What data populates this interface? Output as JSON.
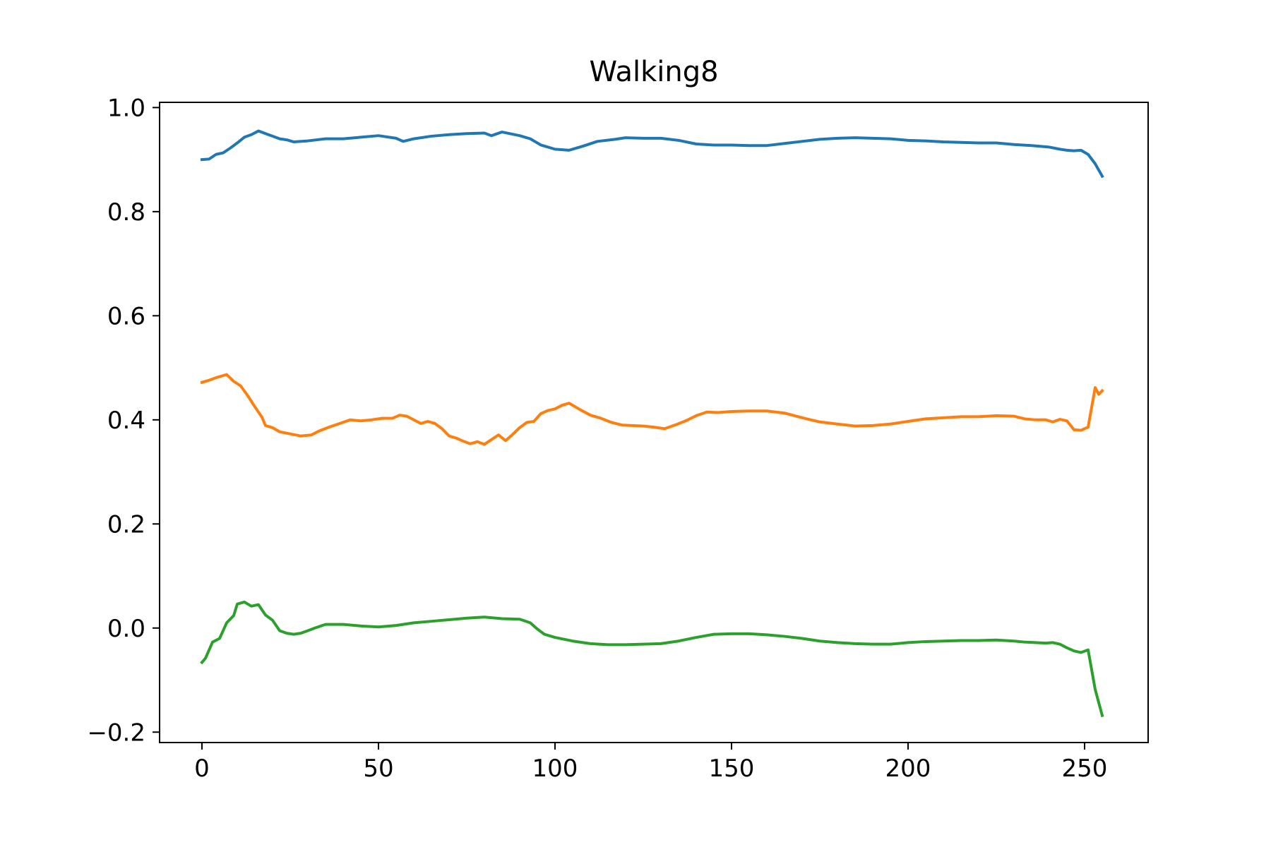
{
  "chart_data": {
    "type": "line",
    "title": "Walking8",
    "xlabel": "",
    "ylabel": "",
    "xlim": [
      -12,
      268
    ],
    "ylim": [
      -0.22,
      1.01
    ],
    "xticks": [
      0,
      50,
      100,
      150,
      200,
      250
    ],
    "xtick_labels": [
      "0",
      "50",
      "100",
      "150",
      "200",
      "250"
    ],
    "yticks": [
      -0.2,
      0.0,
      0.2,
      0.4,
      0.6,
      0.8,
      1.0
    ],
    "ytick_labels": [
      "−0.2",
      "0.0",
      "0.2",
      "0.4",
      "0.6",
      "0.8",
      "1.0"
    ],
    "grid": false,
    "legend": "none",
    "series": [
      {
        "color": "#1f77b4",
        "points": [
          [
            0,
            0.9
          ],
          [
            2,
            0.901
          ],
          [
            4,
            0.91
          ],
          [
            6,
            0.913
          ],
          [
            8,
            0.922
          ],
          [
            10,
            0.932
          ],
          [
            12,
            0.943
          ],
          [
            14,
            0.948
          ],
          [
            16,
            0.955
          ],
          [
            18,
            0.95
          ],
          [
            20,
            0.945
          ],
          [
            22,
            0.94
          ],
          [
            24,
            0.938
          ],
          [
            26,
            0.934
          ],
          [
            30,
            0.936
          ],
          [
            35,
            0.94
          ],
          [
            40,
            0.94
          ],
          [
            45,
            0.943
          ],
          [
            50,
            0.946
          ],
          [
            55,
            0.941
          ],
          [
            57,
            0.935
          ],
          [
            60,
            0.94
          ],
          [
            65,
            0.945
          ],
          [
            70,
            0.948
          ],
          [
            75,
            0.95
          ],
          [
            80,
            0.951
          ],
          [
            82,
            0.946
          ],
          [
            85,
            0.953
          ],
          [
            90,
            0.946
          ],
          [
            93,
            0.94
          ],
          [
            96,
            0.928
          ],
          [
            100,
            0.92
          ],
          [
            104,
            0.918
          ],
          [
            108,
            0.926
          ],
          [
            112,
            0.935
          ],
          [
            117,
            0.939
          ],
          [
            120,
            0.942
          ],
          [
            125,
            0.941
          ],
          [
            130,
            0.941
          ],
          [
            135,
            0.937
          ],
          [
            140,
            0.93
          ],
          [
            145,
            0.928
          ],
          [
            150,
            0.928
          ],
          [
            155,
            0.927
          ],
          [
            160,
            0.927
          ],
          [
            165,
            0.931
          ],
          [
            170,
            0.935
          ],
          [
            175,
            0.939
          ],
          [
            180,
            0.941
          ],
          [
            185,
            0.942
          ],
          [
            190,
            0.941
          ],
          [
            195,
            0.94
          ],
          [
            200,
            0.937
          ],
          [
            205,
            0.936
          ],
          [
            210,
            0.934
          ],
          [
            215,
            0.933
          ],
          [
            220,
            0.932
          ],
          [
            225,
            0.932
          ],
          [
            230,
            0.929
          ],
          [
            235,
            0.927
          ],
          [
            240,
            0.924
          ],
          [
            243,
            0.92
          ],
          [
            245,
            0.918
          ],
          [
            247,
            0.917
          ],
          [
            249,
            0.918
          ],
          [
            251,
            0.91
          ],
          [
            253,
            0.892
          ],
          [
            255,
            0.868
          ]
        ]
      },
      {
        "color": "#ff7f0e",
        "points": [
          [
            0,
            0.472
          ],
          [
            2,
            0.476
          ],
          [
            4,
            0.481
          ],
          [
            6,
            0.485
          ],
          [
            7,
            0.487
          ],
          [
            9,
            0.474
          ],
          [
            11,
            0.465
          ],
          [
            13,
            0.446
          ],
          [
            15,
            0.425
          ],
          [
            17,
            0.405
          ],
          [
            18,
            0.389
          ],
          [
            20,
            0.385
          ],
          [
            22,
            0.377
          ],
          [
            25,
            0.373
          ],
          [
            28,
            0.369
          ],
          [
            31,
            0.371
          ],
          [
            33,
            0.378
          ],
          [
            36,
            0.386
          ],
          [
            39,
            0.393
          ],
          [
            42,
            0.4
          ],
          [
            45,
            0.398
          ],
          [
            48,
            0.4
          ],
          [
            51,
            0.403
          ],
          [
            54,
            0.403
          ],
          [
            56,
            0.409
          ],
          [
            58,
            0.407
          ],
          [
            60,
            0.4
          ],
          [
            62,
            0.393
          ],
          [
            64,
            0.397
          ],
          [
            66,
            0.393
          ],
          [
            68,
            0.383
          ],
          [
            70,
            0.369
          ],
          [
            72,
            0.365
          ],
          [
            74,
            0.359
          ],
          [
            76,
            0.354
          ],
          [
            78,
            0.358
          ],
          [
            80,
            0.353
          ],
          [
            82,
            0.362
          ],
          [
            84,
            0.371
          ],
          [
            86,
            0.36
          ],
          [
            88,
            0.372
          ],
          [
            90,
            0.385
          ],
          [
            92,
            0.395
          ],
          [
            94,
            0.397
          ],
          [
            96,
            0.412
          ],
          [
            98,
            0.418
          ],
          [
            100,
            0.421
          ],
          [
            102,
            0.428
          ],
          [
            104,
            0.432
          ],
          [
            107,
            0.42
          ],
          [
            110,
            0.409
          ],
          [
            113,
            0.403
          ],
          [
            116,
            0.395
          ],
          [
            119,
            0.39
          ],
          [
            122,
            0.389
          ],
          [
            125,
            0.388
          ],
          [
            128,
            0.386
          ],
          [
            131,
            0.383
          ],
          [
            134,
            0.39
          ],
          [
            137,
            0.398
          ],
          [
            140,
            0.408
          ],
          [
            143,
            0.415
          ],
          [
            146,
            0.414
          ],
          [
            150,
            0.416
          ],
          [
            155,
            0.417
          ],
          [
            160,
            0.417
          ],
          [
            165,
            0.413
          ],
          [
            170,
            0.404
          ],
          [
            175,
            0.396
          ],
          [
            180,
            0.392
          ],
          [
            185,
            0.388
          ],
          [
            190,
            0.389
          ],
          [
            195,
            0.392
          ],
          [
            200,
            0.397
          ],
          [
            205,
            0.402
          ],
          [
            210,
            0.404
          ],
          [
            215,
            0.406
          ],
          [
            220,
            0.406
          ],
          [
            225,
            0.408
          ],
          [
            230,
            0.407
          ],
          [
            233,
            0.402
          ],
          [
            236,
            0.4
          ],
          [
            239,
            0.4
          ],
          [
            241,
            0.396
          ],
          [
            243,
            0.401
          ],
          [
            245,
            0.398
          ],
          [
            247,
            0.381
          ],
          [
            249,
            0.38
          ],
          [
            251,
            0.386
          ],
          [
            253,
            0.462
          ],
          [
            254,
            0.449
          ],
          [
            255,
            0.456
          ]
        ]
      },
      {
        "color": "#2ca02c",
        "points": [
          [
            0,
            -0.066
          ],
          [
            1,
            -0.058
          ],
          [
            3,
            -0.027
          ],
          [
            5,
            -0.02
          ],
          [
            7,
            0.01
          ],
          [
            9,
            0.024
          ],
          [
            10,
            0.046
          ],
          [
            12,
            0.05
          ],
          [
            14,
            0.042
          ],
          [
            16,
            0.045
          ],
          [
            18,
            0.025
          ],
          [
            20,
            0.015
          ],
          [
            22,
            -0.005
          ],
          [
            24,
            -0.01
          ],
          [
            26,
            -0.012
          ],
          [
            28,
            -0.01
          ],
          [
            30,
            -0.005
          ],
          [
            32,
            0.0
          ],
          [
            35,
            0.007
          ],
          [
            40,
            0.007
          ],
          [
            45,
            0.004
          ],
          [
            50,
            0.002
          ],
          [
            55,
            0.005
          ],
          [
            60,
            0.01
          ],
          [
            65,
            0.013
          ],
          [
            70,
            0.016
          ],
          [
            75,
            0.019
          ],
          [
            80,
            0.021
          ],
          [
            85,
            0.018
          ],
          [
            90,
            0.017
          ],
          [
            93,
            0.01
          ],
          [
            95,
            -0.002
          ],
          [
            97,
            -0.012
          ],
          [
            100,
            -0.018
          ],
          [
            105,
            -0.025
          ],
          [
            110,
            -0.03
          ],
          [
            115,
            -0.032
          ],
          [
            120,
            -0.032
          ],
          [
            125,
            -0.031
          ],
          [
            130,
            -0.03
          ],
          [
            135,
            -0.025
          ],
          [
            140,
            -0.018
          ],
          [
            145,
            -0.012
          ],
          [
            150,
            -0.011
          ],
          [
            155,
            -0.011
          ],
          [
            160,
            -0.013
          ],
          [
            165,
            -0.016
          ],
          [
            170,
            -0.02
          ],
          [
            175,
            -0.025
          ],
          [
            180,
            -0.028
          ],
          [
            185,
            -0.03
          ],
          [
            190,
            -0.031
          ],
          [
            195,
            -0.031
          ],
          [
            200,
            -0.028
          ],
          [
            205,
            -0.026
          ],
          [
            210,
            -0.025
          ],
          [
            215,
            -0.024
          ],
          [
            220,
            -0.024
          ],
          [
            225,
            -0.023
          ],
          [
            230,
            -0.025
          ],
          [
            233,
            -0.027
          ],
          [
            236,
            -0.028
          ],
          [
            239,
            -0.029
          ],
          [
            241,
            -0.028
          ],
          [
            243,
            -0.031
          ],
          [
            245,
            -0.038
          ],
          [
            247,
            -0.044
          ],
          [
            249,
            -0.047
          ],
          [
            251,
            -0.042
          ],
          [
            253,
            -0.118
          ],
          [
            255,
            -0.168
          ]
        ]
      }
    ]
  }
}
